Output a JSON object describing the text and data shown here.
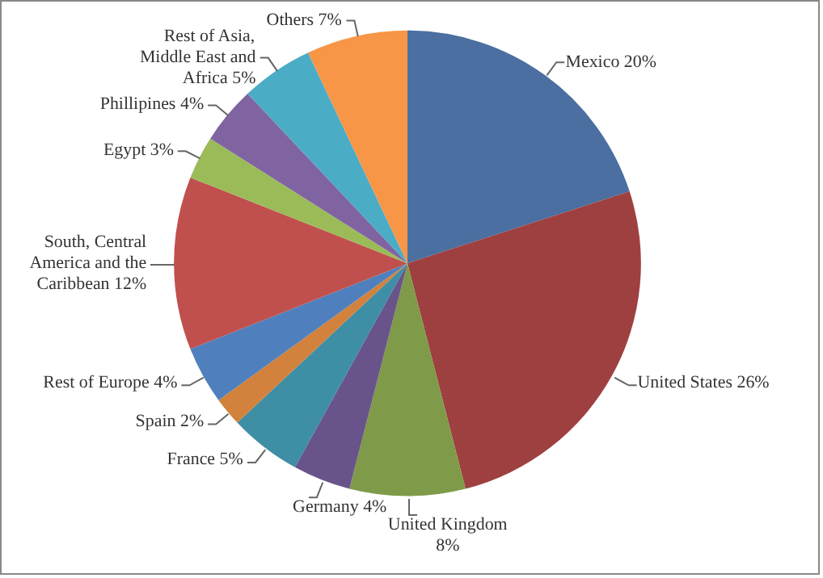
{
  "chart_data": {
    "type": "pie",
    "categories": [
      "Mexico",
      "United States",
      "United Kingdom",
      "Germany",
      "France",
      "Spain",
      "Rest of Europe",
      "South, Central America and the Caribbean",
      "Egypt",
      "Phillipines",
      "Rest of Asia, Middle East and Africa",
      "Others"
    ],
    "values": [
      20,
      26,
      8,
      4,
      5,
      2,
      4,
      12,
      3,
      4,
      5,
      7
    ],
    "colors": [
      "#4a6fa0",
      "#9e4040",
      "#7f9a48",
      "#68548a",
      "#3e8ea6",
      "#d2823c",
      "#4f80bd",
      "#c0504d",
      "#9bbb59",
      "#8064a2",
      "#4bacc6",
      "#f79646"
    ],
    "value_labels": [
      "20%",
      "26%",
      "8%",
      "4%",
      "5%",
      "2%",
      "4%",
      "12%",
      "3%",
      "4%",
      "5%",
      "7%"
    ]
  }
}
